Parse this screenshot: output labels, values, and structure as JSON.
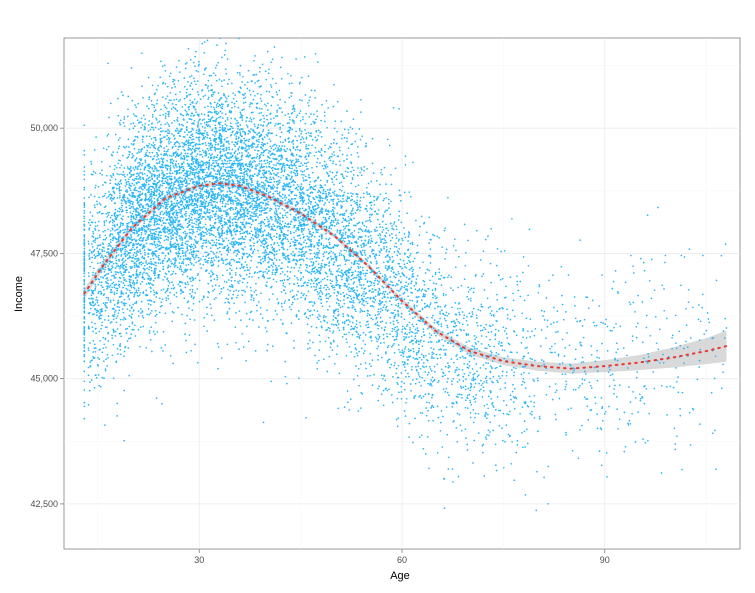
{
  "chart_data": {
    "type": "scatter",
    "title": "",
    "xlabel": "Age",
    "ylabel": "Income",
    "xlim": [
      10,
      110
    ],
    "ylim": [
      41600,
      51800
    ],
    "x_ticks": [
      30,
      60,
      90
    ],
    "x_tick_labels": [
      "30",
      "60",
      "90"
    ],
    "y_ticks": [
      42500,
      45000,
      47500,
      50000
    ],
    "y_tick_labels": [
      "42,500",
      "45,000",
      "47,500",
      "50,000"
    ],
    "grid": true,
    "legend": "none",
    "point_color": "#29b6f6",
    "trend_color": "#e53935",
    "band_color": "#cccccc",
    "point_count_approx": 10000,
    "age_min": 13,
    "age_max": 108,
    "scatter_sd": 1100,
    "trend": {
      "name": "",
      "x": [
        13,
        16,
        20,
        25,
        30,
        33,
        36,
        40,
        45,
        50,
        55,
        60,
        65,
        70,
        75,
        80,
        85,
        90,
        95,
        100,
        105,
        108
      ],
      "y": [
        46700,
        47300,
        48000,
        48600,
        48850,
        48900,
        48850,
        48650,
        48300,
        47850,
        47250,
        46550,
        45950,
        45550,
        45350,
        45250,
        45200,
        45250,
        45320,
        45420,
        45550,
        45650
      ],
      "band_half_width": [
        100,
        80,
        60,
        50,
        45,
        45,
        45,
        45,
        45,
        45,
        45,
        50,
        60,
        70,
        80,
        90,
        100,
        120,
        150,
        200,
        260,
        310
      ]
    }
  }
}
